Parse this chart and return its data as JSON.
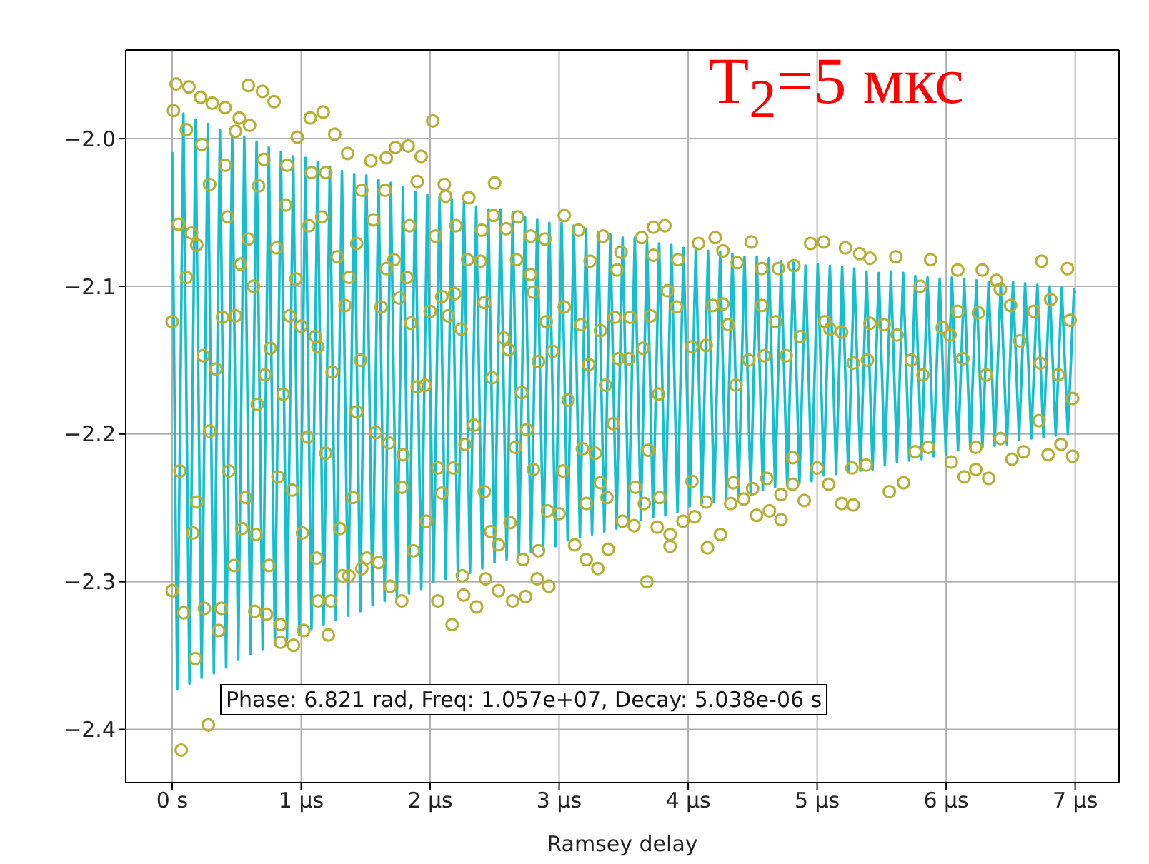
{
  "chart_data": {
    "type": "scatter",
    "xlabel": "Ramsey delay",
    "annotations": [
      "T$_{2}$=5 мкс",
      "Phase: 6.821 rad, Freq: 1.057e+07, Decay: 5.038e-06 s"
    ],
    "xlim": [
      -0.36,
      7.34
    ],
    "ylim": [
      -2.436,
      -1.94
    ],
    "xticks": [
      {
        "value": 0,
        "label": "0 s"
      },
      {
        "value": 1,
        "label": "1 μs"
      },
      {
        "value": 2,
        "label": "2 μs"
      },
      {
        "value": 3,
        "label": "3 μs"
      },
      {
        "value": 4,
        "label": "4 μs"
      },
      {
        "value": 5,
        "label": "5 μs"
      },
      {
        "value": 6,
        "label": "6 μs"
      },
      {
        "value": 7,
        "label": "7 μs"
      }
    ],
    "yticks": [
      {
        "value": -2.4,
        "label": "−2.4"
      },
      {
        "value": -2.3,
        "label": "−2.3"
      },
      {
        "value": -2.2,
        "label": "−2.2"
      },
      {
        "value": -2.1,
        "label": "−2.1"
      },
      {
        "value": -2.0,
        "label": "−2.0"
      }
    ],
    "grid": true,
    "series": [
      {
        "type": "line",
        "color": "#17becf",
        "marker": "none",
        "line_style": "solid",
        "x": [
          0,
          0.039,
          0.087,
          0.134,
          0.181,
          0.228,
          0.276,
          0.323,
          0.37,
          0.418,
          0.465,
          0.512,
          0.559,
          0.607,
          0.654,
          0.701,
          0.749,
          0.796,
          0.843,
          0.89,
          0.938,
          0.985,
          1.033,
          1.08,
          1.127,
          1.174,
          1.222,
          1.269,
          1.316,
          1.364,
          1.411,
          1.458,
          1.505,
          1.553,
          1.6,
          1.647,
          1.695,
          1.742,
          1.789,
          1.836,
          1.884,
          1.931,
          1.978,
          2.026,
          2.073,
          2.12,
          2.168,
          2.215,
          2.262,
          2.309,
          2.357,
          2.404,
          2.451,
          2.499,
          2.546,
          2.593,
          2.64,
          2.688,
          2.735,
          2.782,
          2.83,
          2.877,
          2.924,
          2.971,
          3.019,
          3.066,
          3.113,
          3.161,
          3.208,
          3.255,
          3.302,
          3.35,
          3.397,
          3.444,
          3.492,
          3.539,
          3.586,
          3.633,
          3.681,
          3.728,
          3.775,
          3.823,
          3.87,
          3.917,
          3.964,
          4.012,
          4.059,
          4.106,
          4.154,
          4.201,
          4.248,
          4.295,
          4.343,
          4.39,
          4.437,
          4.485,
          4.532,
          4.579,
          4.626,
          4.674,
          4.721,
          4.768,
          4.816,
          4.863,
          4.91,
          4.957,
          5.005,
          5.052,
          5.099,
          5.147,
          5.194,
          5.241,
          5.288,
          5.336,
          5.383,
          5.43,
          5.478,
          5.525,
          5.572,
          5.619,
          5.667,
          5.714,
          5.761,
          5.809,
          5.856,
          5.903,
          5.95,
          5.998,
          6.045,
          6.092,
          6.14,
          6.187,
          6.234,
          6.281,
          6.329,
          6.376,
          6.423,
          6.471,
          6.518,
          6.565,
          6.612,
          6.66,
          6.707,
          6.754,
          6.802,
          6.849,
          6.896,
          6.943,
          6.991,
          7.0
        ],
        "values": [
          -2.009,
          -2.373,
          -1.983,
          -2.369,
          -1.987,
          -2.365,
          -1.99,
          -2.362,
          -1.994,
          -2.358,
          -1.998,
          -2.353,
          -1.999,
          -2.349,
          -2.002,
          -2.346,
          -2.006,
          -2.343,
          -2.009,
          -2.339,
          -2.012,
          -2.336,
          -2.013,
          -2.332,
          -2.016,
          -2.329,
          -2.019,
          -2.326,
          -2.022,
          -2.323,
          -2.024,
          -2.32,
          -2.025,
          -2.316,
          -2.028,
          -2.313,
          -2.03,
          -2.31,
          -2.033,
          -2.308,
          -2.036,
          -2.305,
          -2.038,
          -2.3,
          -2.039,
          -2.298,
          -2.041,
          -2.296,
          -2.043,
          -2.294,
          -2.046,
          -2.291,
          -2.048,
          -2.287,
          -2.048,
          -2.285,
          -2.05,
          -2.282,
          -2.053,
          -2.28,
          -2.055,
          -2.278,
          -2.057,
          -2.276,
          -2.057,
          -2.272,
          -2.059,
          -2.27,
          -2.061,
          -2.268,
          -2.063,
          -2.266,
          -2.065,
          -2.264,
          -2.067,
          -2.26,
          -2.067,
          -2.258,
          -2.069,
          -2.256,
          -2.071,
          -2.255,
          -2.072,
          -2.253,
          -2.074,
          -2.249,
          -2.074,
          -2.247,
          -2.076,
          -2.246,
          -2.077,
          -2.244,
          -2.078,
          -2.243,
          -2.08,
          -2.241,
          -2.08,
          -2.238,
          -2.081,
          -2.236,
          -2.083,
          -2.235,
          -2.084,
          -2.233,
          -2.086,
          -2.232,
          -2.085,
          -2.228,
          -2.086,
          -2.227,
          -2.087,
          -2.226,
          -2.088,
          -2.225,
          -2.09,
          -2.224,
          -2.091,
          -2.221,
          -2.09,
          -2.219,
          -2.091,
          -2.218,
          -2.093,
          -2.217,
          -2.094,
          -2.215,
          -2.095,
          -2.214,
          -2.094,
          -2.211,
          -2.095,
          -2.21,
          -2.096,
          -2.209,
          -2.097,
          -2.208,
          -2.098,
          -2.207,
          -2.097,
          -2.204,
          -2.098,
          -2.203,
          -2.099,
          -2.202,
          -2.1,
          -2.201,
          -2.101,
          -2.2,
          -2.102,
          -2.105
        ]
      },
      {
        "color": "#b5b033",
        "marker": "circle",
        "x": [
          0.03,
          0.13,
          0.22,
          0.31,
          0.41,
          0.59,
          0.7,
          0.79,
          0.01,
          0.11,
          0.23,
          0.52,
          0.49,
          0.6,
          1.07,
          1.17,
          1.26,
          0.97,
          2.02,
          2.5,
          0.0,
          0.05,
          0.15,
          0.19,
          0.11,
          0.24,
          0.34,
          0.29,
          0.41,
          0.43,
          0.53,
          0.59,
          0.63,
          0.39,
          0.49,
          0.67,
          0.71,
          0.81,
          0.88,
          0.89,
          0.91,
          1.0,
          0.76,
          0.72,
          0.66,
          0.86,
          0.96,
          1.06,
          1.08,
          1.11,
          1.13,
          1.16,
          1.19,
          1.24,
          1.28,
          1.34,
          1.37,
          1.36,
          1.43,
          1.46,
          1.47,
          1.54,
          1.56,
          1.62,
          1.65,
          1.66,
          1.66,
          1.72,
          1.73,
          1.76,
          1.82,
          1.83,
          1.84,
          1.85,
          1.9,
          1.9,
          1.93,
          1.96,
          2.0,
          2.04,
          2.09,
          2.11,
          2.12,
          2.14,
          2.2,
          2.19,
          2.24,
          2.3,
          2.29,
          2.39,
          2.42,
          2.4,
          2.48,
          2.49,
          2.57,
          2.61,
          2.59,
          2.68,
          2.67,
          2.71,
          2.78,
          2.8,
          2.78,
          2.84,
          2.89,
          2.9,
          2.95,
          3.04,
          3.04,
          3.07,
          3.15,
          3.17,
          3.23,
          3.24,
          3.34,
          3.32,
          3.36,
          3.43,
          3.45,
          3.48,
          3.46,
          3.73,
          3.82,
          3.64,
          3.73,
          3.92,
          4.08,
          4.21,
          4.27,
          4.38,
          4.49,
          4.57,
          4.7,
          4.82,
          4.95,
          5.05,
          5.22,
          5.33,
          5.41,
          5.61,
          5.88,
          6.09,
          6.28,
          6.39,
          6.74,
          6.94,
          3.84,
          3.91,
          3.71,
          3.55,
          3.65,
          3.54,
          3.77,
          4.03,
          4.14,
          4.19,
          4.27,
          4.31,
          4.37,
          4.47,
          4.57,
          4.59,
          4.68,
          4.76,
          4.87,
          5.06,
          5.1,
          5.19,
          5.28,
          5.39,
          5.41,
          5.52,
          5.62,
          5.73,
          5.8,
          5.82,
          5.97,
          6.03,
          6.09,
          6.13,
          6.25,
          6.31,
          6.42,
          6.5,
          6.57,
          6.68,
          6.73,
          6.81,
          6.87,
          6.96,
          6.98,
          0.0,
          0.06,
          0.09,
          0.18,
          0.19,
          0.16,
          0.07,
          0.28,
          0.25,
          0.36,
          0.38,
          0.29,
          0.44,
          0.48,
          0.54,
          0.57,
          0.64,
          0.65,
          0.73,
          0.75,
          0.82,
          0.84,
          0.84,
          0.94,
          0.93,
          1.02,
          1.01,
          1.05,
          1.12,
          1.13,
          1.19,
          1.23,
          1.21,
          1.3,
          1.32,
          1.4,
          1.37,
          1.43,
          1.47,
          1.51,
          1.6,
          1.58,
          1.69,
          1.68,
          1.78,
          1.79,
          1.78,
          1.87,
          1.97,
          2.06,
          2.06,
          2.09,
          2.17,
          2.18,
          2.25,
          2.26,
          2.27,
          2.34,
          2.36,
          2.43,
          2.42,
          2.47,
          2.53,
          2.53,
          2.62,
          2.64,
          2.66,
          2.72,
          2.74,
          2.75,
          2.8,
          2.83,
          2.84,
          2.92,
          2.91,
          3.0,
          3.03,
          3.12,
          3.21,
          3.3,
          3.21,
          3.18,
          3.28,
          3.38,
          3.37,
          3.32,
          3.42,
          3.49,
          3.58,
          3.68,
          3.76,
          3.86,
          3.86,
          3.78,
          3.66,
          3.59,
          3.69,
          3.96,
          4.05,
          4.15,
          4.25,
          4.14,
          4.03,
          4.33,
          4.43,
          4.53,
          4.63,
          4.72,
          4.72,
          4.81,
          4.9,
          5.09,
          5.19,
          5.28,
          5.27,
          5.38,
          5.56,
          5.67,
          5.0,
          4.81,
          4.61,
          4.5,
          4.35,
          5.76,
          5.86,
          6.04,
          6.14,
          6.23,
          6.33,
          6.23,
          6.51,
          6.6,
          6.79,
          6.89,
          6.98,
          6.42,
          6.72
        ],
        "values": [
          -1.963,
          -1.965,
          -1.972,
          -1.976,
          -1.979,
          -1.964,
          -1.968,
          -1.975,
          -1.981,
          -1.994,
          -2.004,
          -1.986,
          -1.995,
          -1.991,
          -1.986,
          -1.982,
          -1.997,
          -1.999,
          -1.988,
          -2.03,
          -2.124,
          -2.058,
          -2.064,
          -2.072,
          -2.094,
          -2.147,
          -2.156,
          -2.031,
          -2.018,
          -2.053,
          -2.085,
          -2.068,
          -2.1,
          -2.121,
          -2.12,
          -2.032,
          -2.014,
          -2.074,
          -2.045,
          -2.018,
          -2.12,
          -2.127,
          -2.142,
          -2.16,
          -2.18,
          -2.173,
          -2.095,
          -2.059,
          -2.023,
          -2.134,
          -2.141,
          -2.053,
          -2.023,
          -2.158,
          -2.08,
          -2.113,
          -2.094,
          -2.01,
          -2.071,
          -2.15,
          -2.035,
          -2.015,
          -2.055,
          -2.114,
          -2.035,
          -2.088,
          -2.013,
          -2.082,
          -2.006,
          -2.108,
          -2.094,
          -2.005,
          -2.059,
          -2.125,
          -2.029,
          -2.168,
          -2.012,
          -2.167,
          -2.117,
          -2.066,
          -2.107,
          -2.031,
          -2.039,
          -2.12,
          -2.059,
          -2.105,
          -2.129,
          -2.04,
          -2.082,
          -2.083,
          -2.111,
          -2.062,
          -2.162,
          -2.052,
          -2.135,
          -2.143,
          -2.061,
          -2.053,
          -2.082,
          -2.172,
          -2.092,
          -2.104,
          -2.066,
          -2.151,
          -2.068,
          -2.124,
          -2.144,
          -2.052,
          -2.114,
          -2.177,
          -2.062,
          -2.126,
          -2.153,
          -2.083,
          -2.066,
          -2.13,
          -2.167,
          -2.121,
          -2.089,
          -2.077,
          -2.149,
          -2.06,
          -2.059,
          -2.067,
          -2.079,
          -2.082,
          -2.071,
          -2.067,
          -2.076,
          -2.084,
          -2.07,
          -2.088,
          -2.088,
          -2.086,
          -2.071,
          -2.07,
          -2.074,
          -2.078,
          -2.081,
          -2.08,
          -2.082,
          -2.089,
          -2.089,
          -2.096,
          -2.083,
          -2.088,
          -2.103,
          -2.114,
          -2.12,
          -2.121,
          -2.142,
          -2.149,
          -2.173,
          -2.141,
          -2.14,
          -2.113,
          -2.112,
          -2.126,
          -2.167,
          -2.15,
          -2.113,
          -2.147,
          -2.124,
          -2.147,
          -2.134,
          -2.124,
          -2.129,
          -2.131,
          -2.152,
          -2.15,
          -2.125,
          -2.126,
          -2.133,
          -2.15,
          -2.1,
          -2.16,
          -2.128,
          -2.133,
          -2.117,
          -2.149,
          -2.118,
          -2.16,
          -2.102,
          -2.113,
          -2.137,
          -2.117,
          -2.152,
          -2.109,
          -2.16,
          -2.123,
          -2.176,
          -2.306,
          -2.225,
          -2.321,
          -2.352,
          -2.246,
          -2.267,
          -2.414,
          -2.397,
          -2.318,
          -2.333,
          -2.318,
          -2.198,
          -2.225,
          -2.289,
          -2.264,
          -2.243,
          -2.32,
          -2.268,
          -2.322,
          -2.289,
          -2.229,
          -2.329,
          -2.341,
          -2.343,
          -2.238,
          -2.333,
          -2.267,
          -2.202,
          -2.284,
          -2.313,
          -2.213,
          -2.313,
          -2.336,
          -2.264,
          -2.296,
          -2.243,
          -2.296,
          -2.185,
          -2.291,
          -2.284,
          -2.287,
          -2.199,
          -2.303,
          -2.206,
          -2.236,
          -2.214,
          -2.313,
          -2.279,
          -2.259,
          -2.313,
          -2.223,
          -2.24,
          -2.329,
          -2.223,
          -2.296,
          -2.309,
          -2.207,
          -2.194,
          -2.317,
          -2.298,
          -2.239,
          -2.266,
          -2.306,
          -2.275,
          -2.26,
          -2.313,
          -2.209,
          -2.285,
          -2.31,
          -2.197,
          -2.224,
          -2.298,
          -2.279,
          -2.303,
          -2.252,
          -2.254,
          -2.225,
          -2.275,
          -2.285,
          -2.291,
          -2.247,
          -2.21,
          -2.213,
          -2.278,
          -2.243,
          -2.233,
          -2.193,
          -2.259,
          -2.262,
          -2.3,
          -2.263,
          -2.268,
          -2.276,
          -2.243,
          -2.247,
          -2.236,
          -2.211,
          -2.259,
          -2.256,
          -2.277,
          -2.268,
          -2.246,
          -2.232,
          -2.247,
          -2.244,
          -2.255,
          -2.252,
          -2.258,
          -2.241,
          -2.234,
          -2.245,
          -2.234,
          -2.247,
          -2.248,
          -2.223,
          -2.221,
          -2.239,
          -2.233,
          -2.223,
          -2.216,
          -2.23,
          -2.237,
          -2.233,
          -2.212,
          -2.209,
          -2.219,
          -2.229,
          -2.224,
          -2.23,
          -2.209,
          -2.217,
          -2.212,
          -2.214,
          -2.207,
          -2.215,
          -2.203,
          -2.191
        ]
      }
    ]
  }
}
